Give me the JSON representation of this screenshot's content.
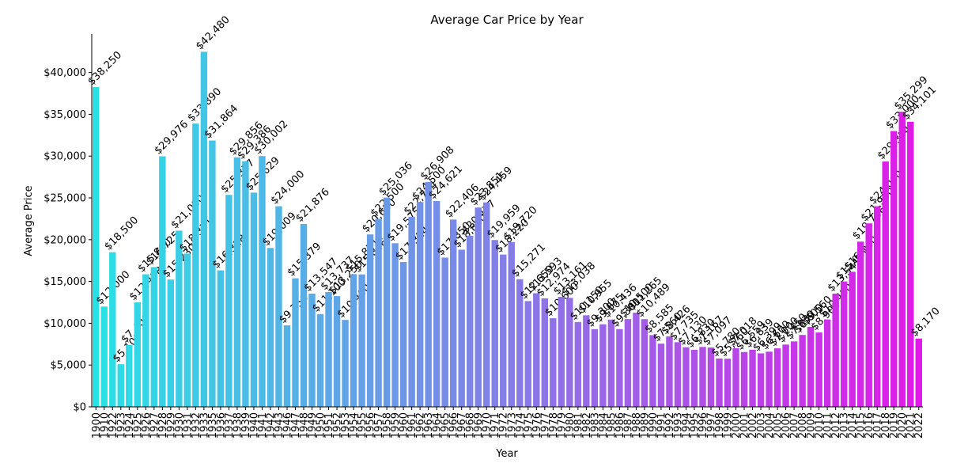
{
  "chart_data": {
    "type": "bar",
    "title": "Average Car Price by Year",
    "x_label": "Year",
    "y_label": "Average Price",
    "colormap": "cool",
    "categories": [
      "1900",
      "1910",
      "1922",
      "1923",
      "1924",
      "1925",
      "1926",
      "1927",
      "1928",
      "1929",
      "1930",
      "1931",
      "1932",
      "1933",
      "1935",
      "1936",
      "1937",
      "1938",
      "1939",
      "1940",
      "1941",
      "1942",
      "1943",
      "1946",
      "1947",
      "1948",
      "1949",
      "1950",
      "1951",
      "1952",
      "1953",
      "1954",
      "1955",
      "1956",
      "1957",
      "1958",
      "1959",
      "1960",
      "1961",
      "1962",
      "1963",
      "1964",
      "1965",
      "1966",
      "1967",
      "1968",
      "1969",
      "1970",
      "1971",
      "1972",
      "1973",
      "1974",
      "1975",
      "1976",
      "1977",
      "1978",
      "1979",
      "1980",
      "1981",
      "1982",
      "1983",
      "1984",
      "1985",
      "1986",
      "1987",
      "1988",
      "1989",
      "1990",
      "1991",
      "1992",
      "1993",
      "1994",
      "1995",
      "1996",
      "1997",
      "1998",
      "1999",
      "2000",
      "2001",
      "2002",
      "2003",
      "2004",
      "2005",
      "2006",
      "2007",
      "2008",
      "2009",
      "2010",
      "2011",
      "2012",
      "2013",
      "2014",
      "2015",
      "2016",
      "2017",
      "2018",
      "2019",
      "2020",
      "2021",
      "2022"
    ],
    "values": [
      38250,
      12000,
      18500,
      5100,
      7400,
      12498,
      15860,
      16725,
      29976,
      15230,
      21080,
      18331,
      33890,
      42480,
      31864,
      16328,
      25357,
      29856,
      29386,
      25629,
      30002,
      19009,
      24000,
      9756,
      15379,
      21876,
      13547,
      11100,
      13737,
      13250,
      10400,
      15871,
      15846,
      20630,
      22500,
      25036,
      19575,
      17324,
      22744,
      24500,
      26908,
      24621,
      17850,
      22406,
      18800,
      20477,
      23851,
      24459,
      19959,
      18220,
      19720,
      15271,
      12650,
      13593,
      12974,
      10600,
      13161,
      13038,
      10150,
      10955,
      9300,
      9875,
      10436,
      9300,
      10500,
      11265,
      10489,
      8585,
      7560,
      8426,
      7735,
      7130,
      6830,
      7167,
      7097,
      5780,
      5760,
      7018,
      6559,
      6839,
      6399,
      6600,
      7000,
      7450,
      7830,
      8600,
      9560,
      8900,
      10450,
      13541,
      15000,
      16160,
      19766,
      21950,
      24000,
      29354,
      33000,
      35299,
      34101,
      8170
    ],
    "value_labels": [
      "$38,250",
      "$12,000",
      "$18,500",
      "$5,100",
      "$7,400",
      "$12,498",
      "$15,860",
      "$16,725",
      "$29,976",
      "$15,230",
      "$21,080",
      "$18,331",
      "$33,890",
      "$42,480",
      "$31,864",
      "$16,328",
      "$25,357",
      "$29,856",
      "$29,386",
      "$25,629",
      "$30,002",
      "$19,009",
      "$24,000",
      "$9,756",
      "$15,379",
      "$21,876",
      "$13,547",
      "$11,100",
      "$13,737",
      "$13,250",
      "$10,400",
      "$15,871",
      "$15,846",
      "$20,630",
      "$22,500",
      "$25,036",
      "$19,575",
      "$17,324",
      "$22,744",
      "$24,500",
      "$26,908",
      "$24,621",
      "$17,850",
      "$22,406",
      "$18,800",
      "$20,477",
      "$23,851",
      "$24,459",
      "$19,959",
      "$18,220",
      "$19,720",
      "$15,271",
      "$12,650",
      "$13,593",
      "$12,974",
      "$10,600",
      "$13,161",
      "$13,038",
      "$10,150",
      "$10,955",
      "$9,300",
      "$9,875",
      "$10,436",
      "$9,300",
      "$10,500",
      "$11,265",
      "$10,489",
      "$8,585",
      "$7,560",
      "$8,426",
      "$7,735",
      "$7,130",
      "$6,830",
      "$7,167",
      "$7,097",
      "$5,780",
      "$5,760",
      "$7,018",
      "$6,559",
      "$6,839",
      "$6,399",
      "$6,600",
      "$7,000",
      "$7,450",
      "$7,830",
      "$8,600",
      "$9,560",
      "$8,900",
      "$10,450",
      "$13,541",
      "$15,000",
      "$16,160",
      "$19,766",
      "$21,950",
      "$24,000",
      "$29,354",
      "$33,000",
      "$35,299",
      "$34,101",
      "$8,170"
    ],
    "ylim": [
      0,
      44604
    ],
    "yticks": [
      {
        "value": 0,
        "label": "$0"
      },
      {
        "value": 5000,
        "label": "$5,000"
      },
      {
        "value": 10000,
        "label": "$10,000"
      },
      {
        "value": 15000,
        "label": "$15,000"
      },
      {
        "value": 20000,
        "label": "$20,000"
      },
      {
        "value": 25000,
        "label": "$25,000"
      },
      {
        "value": 30000,
        "label": "$30,000"
      },
      {
        "value": 35000,
        "label": "$35,000"
      },
      {
        "value": 40000,
        "label": "$40,000"
      }
    ],
    "grid": false
  }
}
